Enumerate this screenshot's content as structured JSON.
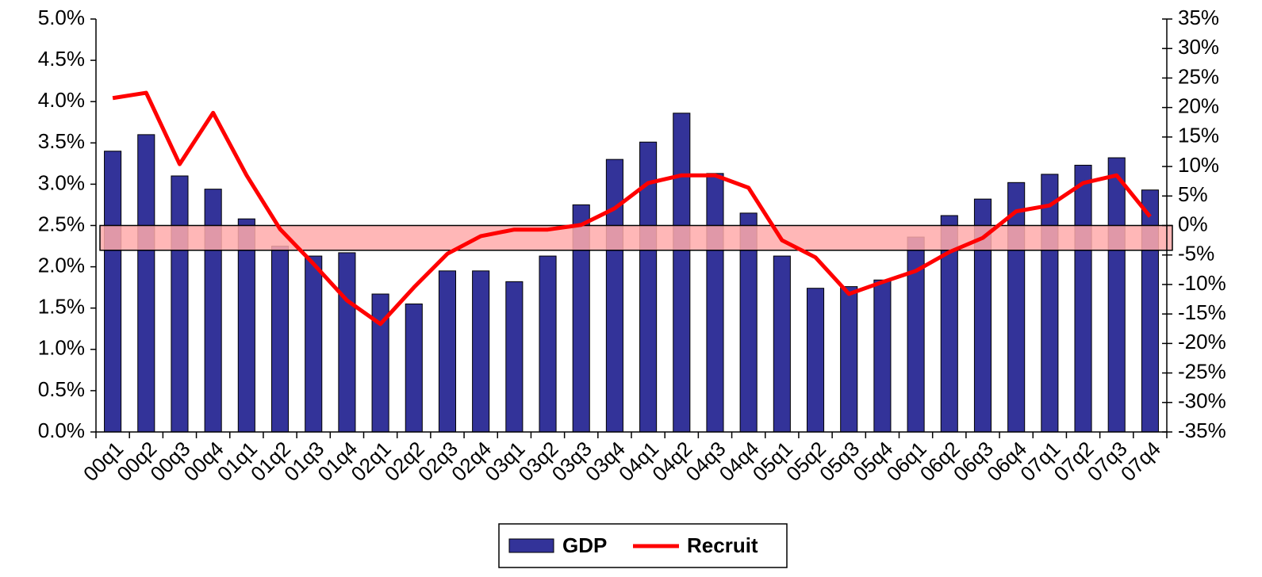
{
  "chart_data": {
    "type": "bar+line",
    "categories": [
      "00q1",
      "00q2",
      "00q3",
      "00q4",
      "01q1",
      "01q2",
      "01q3",
      "01q4",
      "02q1",
      "02q2",
      "02q3",
      "02q4",
      "03q1",
      "03q2",
      "03q3",
      "03q4",
      "04q1",
      "04q2",
      "04q3",
      "04q4",
      "05q1",
      "05q2",
      "05q3",
      "05q4",
      "06q1",
      "06q2",
      "06q3",
      "06q4",
      "07q1",
      "07q2",
      "07q3",
      "07q4"
    ],
    "series": [
      {
        "name": "GDP",
        "type": "bar",
        "color": "#333399",
        "values": [
          3.4,
          3.6,
          3.1,
          2.94,
          2.58,
          2.25,
          2.13,
          2.17,
          1.67,
          1.55,
          1.95,
          1.95,
          1.82,
          2.13,
          2.75,
          3.3,
          3.51,
          3.86,
          3.13,
          2.65,
          2.13,
          1.74,
          1.76,
          1.84,
          2.36,
          2.62,
          2.82,
          3.02,
          3.12,
          3.23,
          3.32,
          2.93
        ]
      },
      {
        "name": "Recruit",
        "type": "line",
        "axis": "y2",
        "color": "#ff0000",
        "values": [
          21.6,
          22.5,
          10.4,
          19.1,
          8.5,
          -0.6,
          -6.5,
          -12.7,
          -16.7,
          -10.5,
          -4.8,
          -1.8,
          -0.7,
          -0.7,
          0.1,
          2.9,
          7.2,
          8.5,
          8.5,
          6.4,
          -2.5,
          -5.4,
          -11.6,
          -9.6,
          -7.7,
          -4.5,
          -2.1,
          2.4,
          3.4,
          7.2,
          8.5,
          1.5
        ]
      }
    ],
    "band": [
      2.2,
      2.5
    ],
    "band_color": "#ffaaaa",
    "ylim": [
      0,
      5
    ],
    "yticks": [
      {
        "value": 0,
        "label": "0.0%"
      },
      {
        "value": 0.5,
        "label": "0.5%"
      },
      {
        "value": 1,
        "label": "1.0%"
      },
      {
        "value": 1.5,
        "label": "1.5%"
      },
      {
        "value": 2,
        "label": "2.0%"
      },
      {
        "value": 2.5,
        "label": "2.5%"
      },
      {
        "value": 3,
        "label": "3.0%"
      },
      {
        "value": 3.5,
        "label": "3.5%"
      },
      {
        "value": 4,
        "label": "4.0%"
      },
      {
        "value": 4.5,
        "label": "4.5%"
      },
      {
        "value": 5,
        "label": "5.0%"
      }
    ],
    "y2lim": [
      -35,
      35
    ],
    "y2ticks": [
      {
        "value": -35,
        "label": "-35%"
      },
      {
        "value": -30,
        "label": "-30%"
      },
      {
        "value": -25,
        "label": "-25%"
      },
      {
        "value": -20,
        "label": "-20%"
      },
      {
        "value": -15,
        "label": "-15%"
      },
      {
        "value": -10,
        "label": "-10%"
      },
      {
        "value": -5,
        "label": "-5%"
      },
      {
        "value": 0,
        "label": "0%"
      },
      {
        "value": 5,
        "label": "5%"
      },
      {
        "value": 10,
        "label": "10%"
      },
      {
        "value": 15,
        "label": "15%"
      },
      {
        "value": 20,
        "label": "20%"
      },
      {
        "value": 25,
        "label": "25%"
      },
      {
        "value": 30,
        "label": "30%"
      },
      {
        "value": 35,
        "label": "35%"
      }
    ],
    "legend": "bottom"
  }
}
